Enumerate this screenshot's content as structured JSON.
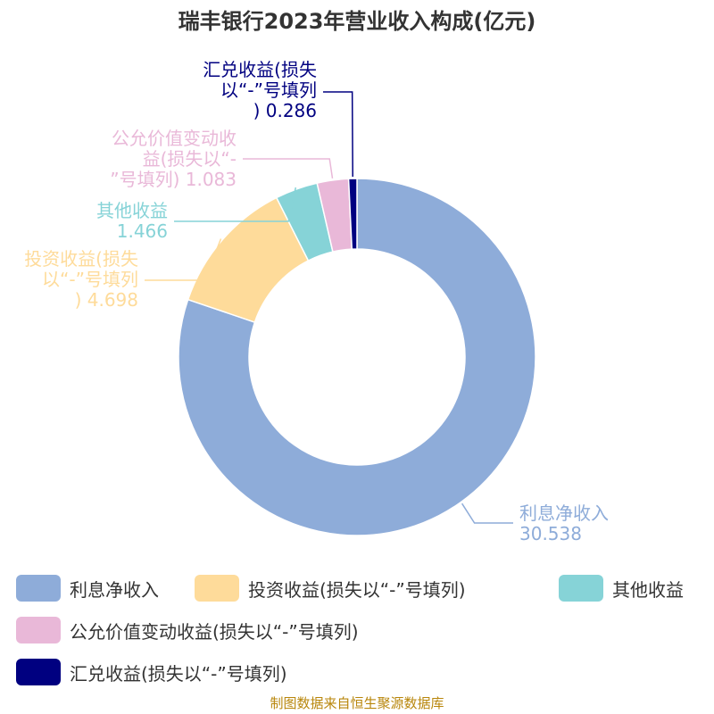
{
  "chart_data": {
    "type": "pie",
    "title": "瑞丰银行2023年营业收入构成(亿元)",
    "donut": true,
    "slices": [
      {
        "name": "利息净收入",
        "value": 30.538,
        "color": "#8eacd9",
        "label_lines": [
          "利息净收入",
          "30.538"
        ]
      },
      {
        "name": "投资收益(损失以“-”号填列)",
        "value": 4.698,
        "color": "#fedb9a",
        "label_lines": [
          "投资收益(损失",
          "以“-”号填列",
          ") 4.698"
        ]
      },
      {
        "name": "其他收益",
        "value": 1.466,
        "color": "#86d3d7",
        "label_lines": [
          "其他收益",
          "1.466"
        ]
      },
      {
        "name": "公允价值变动收益(损失以“-”号填列)",
        "value": 1.083,
        "color": "#e9b8d8",
        "label_lines": [
          "公允价值变动收",
          "益(损失以“-",
          "”号填列) 1.083"
        ]
      },
      {
        "name": "汇兑收益(损失以“-”号填列)",
        "value": 0.286,
        "color": "#000080",
        "label_lines": [
          "汇兑收益(损失",
          "以“-”号填列",
          ") 0.286"
        ]
      }
    ]
  },
  "legend": {
    "items": [
      {
        "label": "利息净收入",
        "color": "#8eacd9"
      },
      {
        "label": "投资收益(损失以“-”号填列)",
        "color": "#fedb9a"
      },
      {
        "label": "其他收益",
        "color": "#86d3d7"
      },
      {
        "label": "公允价值变动收益(损失以“-”号填列)",
        "color": "#e9b8d8"
      },
      {
        "label": "汇兑收益(损失以“-”号填列)",
        "color": "#000080"
      }
    ]
  },
  "footer": {
    "source": "制图数据来自恒生聚源数据库"
  }
}
